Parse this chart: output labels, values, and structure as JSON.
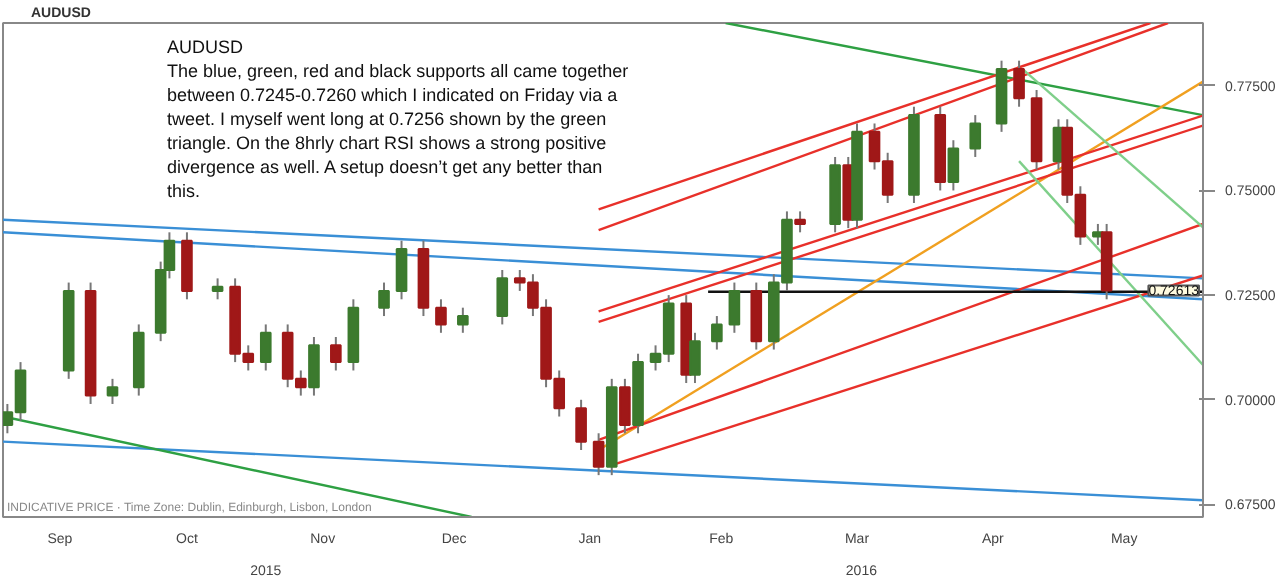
{
  "chart_data": {
    "type": "candlestick",
    "title": "AUDUSD",
    "subtitle": "The blue, green, red and black supports all came together between 0.7245-0.7260 which I indicated on Friday via a tweet. I myself went long at 0.7256 shown by the green triangle. On the 8hrly chart RSI shows a strong positive divergence as well. A setup doesn’t get any better than this.",
    "annotations": [
      {
        "text": "AUDUSD"
      },
      {
        "text": "INDICATIVE PRICE · Time Zone: Dublin, Edinburgh, Lisbon, London"
      },
      {
        "text": "0.72613",
        "y": 0.72613
      }
    ],
    "x": [
      "2015-09-05",
      "2015-09-08",
      "2015-09-19",
      "2015-09-24",
      "2015-09-29",
      "2015-10-05",
      "2015-10-10",
      "2015-10-12",
      "2015-10-16",
      "2015-10-23",
      "2015-10-27",
      "2015-10-30",
      "2015-11-03",
      "2015-11-08",
      "2015-11-11",
      "2015-11-14",
      "2015-11-19",
      "2015-11-23",
      "2015-11-30",
      "2015-12-04",
      "2015-12-09",
      "2015-12-13",
      "2015-12-18",
      "2015-12-27",
      "2015-12-31",
      "2016-01-03",
      "2016-01-06",
      "2016-01-09",
      "2016-01-14",
      "2016-01-18",
      "2016-01-21",
      "2016-01-24",
      "2016-01-27",
      "2016-01-31",
      "2016-02-03",
      "2016-02-07",
      "2016-02-09",
      "2016-02-14",
      "2016-02-18",
      "2016-02-23",
      "2016-02-27",
      "2016-03-01",
      "2016-03-04",
      "2016-03-12",
      "2016-03-15",
      "2016-03-17",
      "2016-03-21",
      "2016-03-24",
      "2016-03-30",
      "2016-04-05",
      "2016-04-08",
      "2016-04-13",
      "2016-04-19",
      "2016-04-23",
      "2016-04-27",
      "2016-05-02",
      "2016-05-04",
      "2016-05-07",
      "2016-05-11",
      "2016-05-13"
    ],
    "ohlc": [
      [
        0.694,
        0.699,
        0.692,
        0.697
      ],
      [
        0.697,
        0.709,
        0.695,
        0.707
      ],
      [
        0.707,
        0.728,
        0.705,
        0.726
      ],
      [
        0.726,
        0.728,
        0.699,
        0.701
      ],
      [
        0.701,
        0.705,
        0.699,
        0.703
      ],
      [
        0.703,
        0.718,
        0.701,
        0.716
      ],
      [
        0.716,
        0.733,
        0.714,
        0.731
      ],
      [
        0.731,
        0.74,
        0.729,
        0.738
      ],
      [
        0.738,
        0.74,
        0.724,
        0.726
      ],
      [
        0.726,
        0.729,
        0.724,
        0.727
      ],
      [
        0.727,
        0.729,
        0.709,
        0.711
      ],
      [
        0.711,
        0.713,
        0.707,
        0.709
      ],
      [
        0.709,
        0.718,
        0.707,
        0.716
      ],
      [
        0.716,
        0.718,
        0.703,
        0.705
      ],
      [
        0.705,
        0.707,
        0.701,
        0.703
      ],
      [
        0.703,
        0.715,
        0.701,
        0.713
      ],
      [
        0.713,
        0.715,
        0.707,
        0.709
      ],
      [
        0.709,
        0.724,
        0.707,
        0.722
      ],
      [
        0.722,
        0.728,
        0.72,
        0.726
      ],
      [
        0.726,
        0.738,
        0.724,
        0.736
      ],
      [
        0.736,
        0.738,
        0.72,
        0.722
      ],
      [
        0.722,
        0.724,
        0.716,
        0.718
      ],
      [
        0.718,
        0.722,
        0.716,
        0.72
      ],
      [
        0.72,
        0.731,
        0.718,
        0.729
      ],
      [
        0.729,
        0.731,
        0.726,
        0.728
      ],
      [
        0.728,
        0.73,
        0.72,
        0.722
      ],
      [
        0.722,
        0.724,
        0.703,
        0.705
      ],
      [
        0.705,
        0.707,
        0.696,
        0.698
      ],
      [
        0.698,
        0.7,
        0.688,
        0.69
      ],
      [
        0.69,
        0.692,
        0.682,
        0.684
      ],
      [
        0.684,
        0.705,
        0.682,
        0.703
      ],
      [
        0.703,
        0.705,
        0.692,
        0.694
      ],
      [
        0.694,
        0.711,
        0.692,
        0.709
      ],
      [
        0.709,
        0.713,
        0.707,
        0.711
      ],
      [
        0.711,
        0.725,
        0.709,
        0.723
      ],
      [
        0.723,
        0.725,
        0.704,
        0.706
      ],
      [
        0.706,
        0.716,
        0.704,
        0.714
      ],
      [
        0.714,
        0.72,
        0.712,
        0.718
      ],
      [
        0.718,
        0.728,
        0.716,
        0.726
      ],
      [
        0.726,
        0.728,
        0.712,
        0.714
      ],
      [
        0.714,
        0.73,
        0.712,
        0.728
      ],
      [
        0.728,
        0.745,
        0.726,
        0.743
      ],
      [
        0.743,
        0.745,
        0.74,
        0.742
      ],
      [
        0.742,
        0.758,
        0.74,
        0.756
      ],
      [
        0.756,
        0.758,
        0.741,
        0.743
      ],
      [
        0.743,
        0.766,
        0.741,
        0.764
      ],
      [
        0.764,
        0.766,
        0.755,
        0.757
      ],
      [
        0.757,
        0.759,
        0.747,
        0.749
      ],
      [
        0.749,
        0.77,
        0.747,
        0.768
      ],
      [
        0.768,
        0.77,
        0.75,
        0.752
      ],
      [
        0.752,
        0.762,
        0.75,
        0.76
      ],
      [
        0.76,
        0.768,
        0.758,
        0.766
      ],
      [
        0.766,
        0.781,
        0.764,
        0.779
      ],
      [
        0.779,
        0.781,
        0.77,
        0.772
      ],
      [
        0.772,
        0.774,
        0.755,
        0.757
      ],
      [
        0.757,
        0.767,
        0.755,
        0.765
      ],
      [
        0.765,
        0.767,
        0.747,
        0.749
      ],
      [
        0.749,
        0.751,
        0.737,
        0.739
      ],
      [
        0.739,
        0.742,
        0.737,
        0.74
      ],
      [
        0.74,
        0.742,
        0.724,
        0.7261
      ]
    ],
    "colors": [
      "#3c7a2e",
      "#3c7a2e",
      "#3c7a2e",
      "#a01818",
      "#3c7a2e",
      "#3c7a2e",
      "#3c7a2e",
      "#3c7a2e",
      "#a01818",
      "#3c7a2e",
      "#a01818",
      "#a01818",
      "#3c7a2e",
      "#a01818",
      "#a01818",
      "#3c7a2e",
      "#a01818",
      "#3c7a2e",
      "#3c7a2e",
      "#3c7a2e",
      "#a01818",
      "#a01818",
      "#3c7a2e",
      "#3c7a2e",
      "#a01818",
      "#a01818",
      "#a01818",
      "#a01818",
      "#a01818",
      "#a01818",
      "#3c7a2e",
      "#a01818",
      "#3c7a2e",
      "#3c7a2e",
      "#3c7a2e",
      "#a01818",
      "#3c7a2e",
      "#3c7a2e",
      "#3c7a2e",
      "#a01818",
      "#3c7a2e",
      "#3c7a2e",
      "#a01818",
      "#3c7a2e",
      "#a01818",
      "#3c7a2e",
      "#a01818",
      "#a01818",
      "#3c7a2e",
      "#a01818",
      "#3c7a2e",
      "#3c7a2e",
      "#3c7a2e",
      "#a01818",
      "#a01818",
      "#3c7a2e",
      "#a01818",
      "#a01818",
      "#3c7a2e",
      "#a01818"
    ],
    "series": [
      {
        "type": "line",
        "color": "#3a8fd6",
        "x": [
          "2015-09-04",
          "2016-06-04"
        ],
        "values": [
          0.743,
          0.729
        ]
      },
      {
        "type": "line",
        "color": "#3a8fd6",
        "x": [
          "2015-09-04",
          "2016-06-04"
        ],
        "values": [
          0.74,
          0.724
        ]
      },
      {
        "type": "line",
        "color": "#3a8fd6",
        "x": [
          "2015-09-04",
          "2016-06-04"
        ],
        "values": [
          0.69,
          0.676
        ]
      },
      {
        "type": "line",
        "color": "#2ea043",
        "x": [
          "2015-09-04",
          "2015-12-20"
        ],
        "values": [
          0.696,
          0.672
        ]
      },
      {
        "type": "line",
        "color": "#2ea043",
        "x": [
          "2016-02-16",
          "2016-06-04"
        ],
        "values": [
          0.79,
          0.768
        ]
      },
      {
        "type": "line",
        "color": "#f0a020",
        "x": [
          "2016-01-18",
          "2016-06-04"
        ],
        "values": [
          0.688,
          0.776
        ]
      },
      {
        "type": "line",
        "color": "#e8302a",
        "x": [
          "2016-01-18",
          "2016-05-23"
        ],
        "values": [
          0.7455,
          0.79
        ]
      },
      {
        "type": "line",
        "color": "#e8302a",
        "x": [
          "2016-01-18",
          "2016-05-27"
        ],
        "values": [
          0.7405,
          0.79
        ]
      },
      {
        "type": "line",
        "color": "#e8302a",
        "x": [
          "2016-01-18",
          "2016-06-04"
        ],
        "values": [
          0.7211,
          0.7679
        ]
      },
      {
        "type": "line",
        "color": "#e8302a",
        "x": [
          "2016-01-18",
          "2016-06-04"
        ],
        "values": [
          0.7186,
          0.7655
        ]
      },
      {
        "type": "line",
        "color": "#e8302a",
        "x": [
          "2016-01-18",
          "2016-06-04"
        ],
        "values": [
          0.6904,
          0.742
        ]
      },
      {
        "type": "line",
        "color": "#e8302a",
        "x": [
          "2016-01-21",
          "2016-06-04"
        ],
        "values": [
          0.6844,
          0.7297
        ]
      },
      {
        "type": "line",
        "color": "#7fcf8a",
        "x": [
          "2016-04-24",
          "2016-06-04"
        ],
        "values": [
          0.7788,
          0.7412
        ]
      },
      {
        "type": "line",
        "color": "#7fcf8a",
        "x": [
          "2016-04-23",
          "2016-06-04"
        ],
        "values": [
          0.757,
          0.7083
        ]
      },
      {
        "type": "line",
        "color": "#111111",
        "x": [
          "2016-02-12",
          "2016-06-04"
        ],
        "values": [
          0.7258,
          0.7258
        ]
      }
    ],
    "xlim": [
      "2015-09-04",
      "2016-06-04"
    ],
    "x2lim": [
      "2015-09-04",
      "2016-06-04"
    ],
    "x2ticks": [
      {
        "value": "2015-11-03",
        "label": "2015"
      },
      {
        "value": "2016-03-18",
        "label": "2016"
      }
    ],
    "ylim": [
      0.672,
      0.79
    ],
    "xticks": [
      {
        "value": "2015-09-17",
        "label": "Sep"
      },
      {
        "value": "2015-10-16",
        "label": "Oct"
      },
      {
        "value": "2015-11-16",
        "label": "Nov"
      },
      {
        "value": "2015-12-16",
        "label": "Dec"
      },
      {
        "value": "2016-01-16",
        "label": "Jan"
      },
      {
        "value": "2016-02-15",
        "label": "Feb"
      },
      {
        "value": "2016-03-17",
        "label": "Mar"
      },
      {
        "value": "2016-04-17",
        "label": "Apr"
      },
      {
        "value": "2016-05-17",
        "label": "May"
      }
    ],
    "yticks": [
      {
        "value": 0.675,
        "label": "0.67500"
      },
      {
        "value": 0.7,
        "label": "0.70000"
      },
      {
        "value": 0.725,
        "label": "0.72500"
      },
      {
        "value": 0.75,
        "label": "0.75000"
      },
      {
        "value": 0.775,
        "label": "0.77500"
      }
    ]
  }
}
